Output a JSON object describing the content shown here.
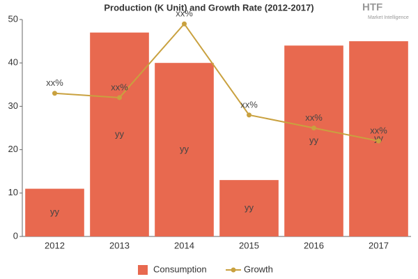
{
  "chart_data": {
    "type": "bar-line",
    "title": "Production (K Unit) and Growth Rate (2012-2017)",
    "logo": {
      "text": "HTF",
      "subtitle": "Market Intelligence"
    },
    "categories": [
      "2012",
      "2013",
      "2014",
      "2015",
      "2016",
      "2017"
    ],
    "series": [
      {
        "name": "Consumption",
        "type": "bar",
        "color": "#e8694f",
        "values": [
          11,
          47,
          40,
          13,
          44,
          45
        ],
        "value_labels": [
          "yy",
          "yy",
          "yy",
          "yy",
          "yy",
          "yy"
        ]
      },
      {
        "name": "Growth",
        "type": "line",
        "color": "#c9a13f",
        "values": [
          33,
          32,
          49,
          28,
          25,
          22
        ],
        "value_labels": [
          "xx%",
          "xx%",
          "xx%",
          "xx%",
          "xx%",
          "xx%"
        ]
      }
    ],
    "ylim": [
      0,
      50
    ],
    "yticks": [
      0,
      10,
      20,
      30,
      40,
      50
    ],
    "grid": false,
    "legend": "bottom"
  }
}
